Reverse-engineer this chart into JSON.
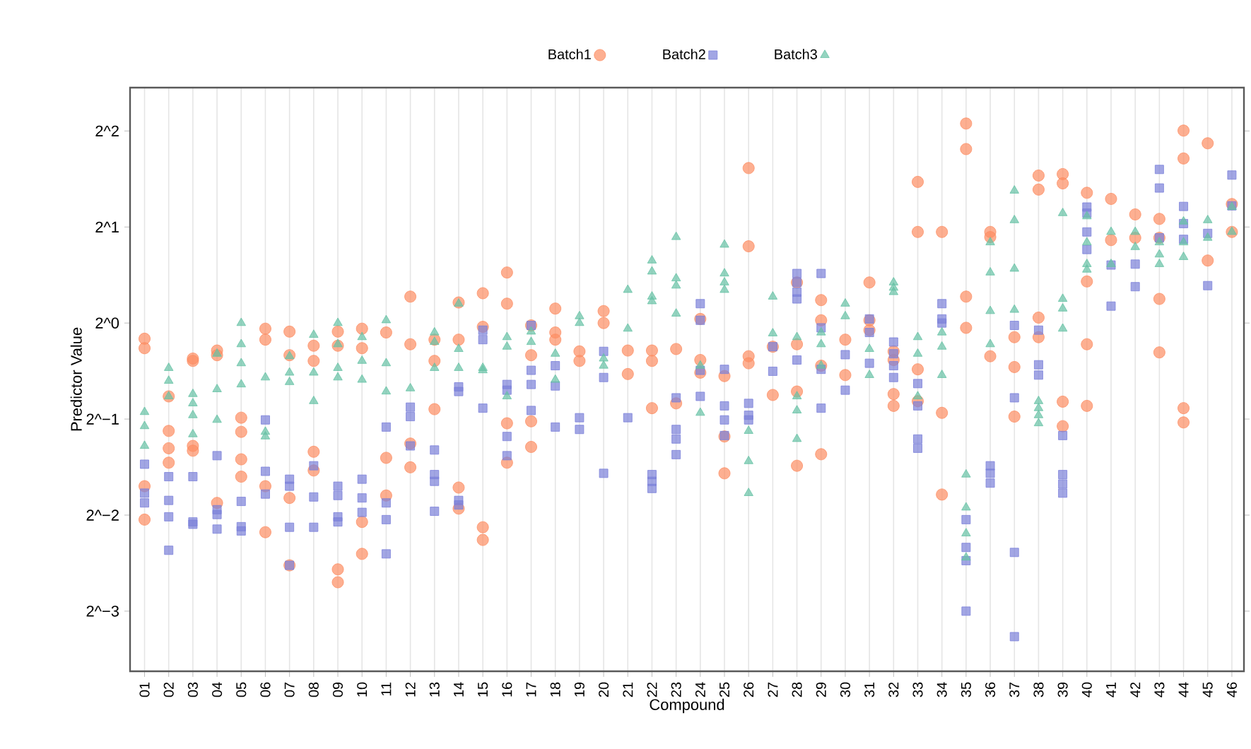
{
  "chart_data": {
    "type": "scatter",
    "xlabel": "Compound",
    "ylabel": "Predictor Value",
    "log": "y",
    "grid": "x",
    "legend": "top",
    "xlim": [
      0.4,
      46.5
    ],
    "xticks": [
      {
        "value": 1,
        "label": "01"
      },
      {
        "value": 2,
        "label": "02"
      },
      {
        "value": 3,
        "label": "03"
      },
      {
        "value": 4,
        "label": "04"
      },
      {
        "value": 5,
        "label": "05"
      },
      {
        "value": 6,
        "label": "06"
      },
      {
        "value": 7,
        "label": "07"
      },
      {
        "value": 8,
        "label": "08"
      },
      {
        "value": 9,
        "label": "09"
      },
      {
        "value": 10,
        "label": "10"
      },
      {
        "value": 11,
        "label": "11"
      },
      {
        "value": 12,
        "label": "12"
      },
      {
        "value": 13,
        "label": "13"
      },
      {
        "value": 14,
        "label": "14"
      },
      {
        "value": 15,
        "label": "15"
      },
      {
        "value": 16,
        "label": "16"
      },
      {
        "value": 17,
        "label": "17"
      },
      {
        "value": 18,
        "label": "18"
      },
      {
        "value": 19,
        "label": "19"
      },
      {
        "value": 20,
        "label": "20"
      },
      {
        "value": 21,
        "label": "21"
      },
      {
        "value": 22,
        "label": "22"
      },
      {
        "value": 23,
        "label": "23"
      },
      {
        "value": 24,
        "label": "24"
      },
      {
        "value": 25,
        "label": "25"
      },
      {
        "value": 26,
        "label": "26"
      },
      {
        "value": 27,
        "label": "27"
      },
      {
        "value": 28,
        "label": "28"
      },
      {
        "value": 29,
        "label": "29"
      },
      {
        "value": 30,
        "label": "30"
      },
      {
        "value": 31,
        "label": "31"
      },
      {
        "value": 32,
        "label": "32"
      },
      {
        "value": 33,
        "label": "33"
      },
      {
        "value": 34,
        "label": "34"
      },
      {
        "value": 35,
        "label": "35"
      },
      {
        "value": 36,
        "label": "36"
      },
      {
        "value": 37,
        "label": "37"
      },
      {
        "value": 38,
        "label": "38"
      },
      {
        "value": 39,
        "label": "39"
      },
      {
        "value": 40,
        "label": "40"
      },
      {
        "value": 41,
        "label": "41"
      },
      {
        "value": 42,
        "label": "42"
      },
      {
        "value": 43,
        "label": "43"
      },
      {
        "value": 44,
        "label": "44"
      },
      {
        "value": 45,
        "label": "45"
      },
      {
        "value": 46,
        "label": "46"
      }
    ],
    "ylim": [
      0.081,
      5.47
    ],
    "yticks": [
      {
        "value": 0.125,
        "label": "2^−3"
      },
      {
        "value": 0.25,
        "label": "2^−2"
      },
      {
        "value": 0.5,
        "label": "2^−1"
      },
      {
        "value": 1,
        "label": "2^0"
      },
      {
        "value": 2,
        "label": "2^1"
      },
      {
        "value": 4,
        "label": "2^2"
      }
    ],
    "series": [
      {
        "name": "Batch1",
        "color": "#fc8d62",
        "marker": "circle",
        "x": [
          1,
          1,
          1,
          1,
          2,
          2,
          2,
          2,
          3,
          3,
          3,
          3,
          4,
          4,
          4,
          5,
          5,
          5,
          5,
          6,
          6,
          6,
          6,
          7,
          7,
          7,
          7,
          8,
          8,
          8,
          8,
          9,
          9,
          9,
          9,
          10,
          10,
          10,
          10,
          11,
          11,
          11,
          12,
          12,
          12,
          12,
          13,
          13,
          13,
          14,
          14,
          14,
          14,
          15,
          15,
          15,
          15,
          16,
          16,
          16,
          16,
          17,
          17,
          17,
          17,
          18,
          18,
          18,
          19,
          19,
          20,
          20,
          21,
          21,
          22,
          22,
          22,
          23,
          23,
          24,
          24,
          24,
          25,
          25,
          25,
          26,
          26,
          26,
          26,
          27,
          27,
          28,
          28,
          28,
          28,
          29,
          29,
          29,
          29,
          30,
          30,
          31,
          31,
          31,
          32,
          32,
          32,
          32,
          33,
          33,
          33,
          33,
          34,
          34,
          34,
          35,
          35,
          35,
          35,
          36,
          36,
          36,
          37,
          37,
          37,
          38,
          38,
          38,
          38,
          39,
          39,
          39,
          39,
          40,
          40,
          40,
          40,
          41,
          41,
          42,
          42,
          43,
          43,
          43,
          43,
          44,
          44,
          44,
          44,
          45,
          45,
          46,
          46
        ],
        "values": [
          0.893,
          0.834,
          0.308,
          0.242,
          0.589,
          0.459,
          0.405,
          0.365,
          0.774,
          0.761,
          0.412,
          0.398,
          0.82,
          0.793,
          0.273,
          0.505,
          0.456,
          0.374,
          0.33,
          0.96,
          0.887,
          0.308,
          0.221,
          0.94,
          0.793,
          0.283,
          0.174,
          0.849,
          0.761,
          0.395,
          0.345,
          0.94,
          0.849,
          0.169,
          0.154,
          0.96,
          0.834,
          0.238,
          0.189,
          0.934,
          0.378,
          0.288,
          1.21,
          0.858,
          0.419,
          0.353,
          0.887,
          0.761,
          0.537,
          1.16,
          0.887,
          0.305,
          0.262,
          1.24,
          0.973,
          0.229,
          0.209,
          1.44,
          1.15,
          0.485,
          0.365,
          0.983,
          0.793,
          0.492,
          0.409,
          1.11,
          0.934,
          0.887,
          0.815,
          0.761,
          1.09,
          1.0,
          0.82,
          0.692,
          0.82,
          0.761,
          0.541,
          0.829,
          0.56,
          1.03,
          0.766,
          0.699,
          0.682,
          0.441,
          0.338,
          3.06,
          1.74,
          0.787,
          0.748,
          0.843,
          0.595,
          1.34,
          0.858,
          0.61,
          0.357,
          1.18,
          1.02,
          0.735,
          0.388,
          0.887,
          0.687,
          1.34,
          1.02,
          0.95,
          0.815,
          0.766,
          0.599,
          0.55,
          2.77,
          1.93,
          0.716,
          0.569,
          1.93,
          0.523,
          0.29,
          4.22,
          3.51,
          1.21,
          0.966,
          1.93,
          1.86,
          0.787,
          0.903,
          0.728,
          0.509,
          2.9,
          2.62,
          1.04,
          0.903,
          2.93,
          2.74,
          0.567,
          0.475,
          2.56,
          1.35,
          0.858,
          0.55,
          2.45,
          1.82,
          2.19,
          1.85,
          2.12,
          1.85,
          1.19,
          0.809,
          4.01,
          3.28,
          0.541,
          0.488,
          3.66,
          1.57,
          2.36,
          1.93
        ]
      },
      {
        "name": "Batch2",
        "color": "#7b80d9",
        "marker": "square",
        "x": [
          1,
          1,
          1,
          2,
          2,
          2,
          2,
          3,
          3,
          3,
          4,
          4,
          4,
          4,
          5,
          5,
          5,
          6,
          6,
          6,
          7,
          7,
          7,
          7,
          8,
          8,
          8,
          9,
          9,
          9,
          9,
          10,
          10,
          10,
          11,
          11,
          11,
          11,
          12,
          12,
          12,
          13,
          13,
          13,
          13,
          14,
          14,
          14,
          14,
          15,
          15,
          15,
          16,
          16,
          16,
          16,
          17,
          17,
          17,
          17,
          18,
          18,
          18,
          19,
          19,
          20,
          20,
          20,
          21,
          22,
          22,
          22,
          23,
          23,
          23,
          23,
          24,
          24,
          24,
          24,
          25,
          25,
          25,
          25,
          26,
          26,
          26,
          27,
          27,
          28,
          28,
          28,
          28,
          28,
          29,
          29,
          29,
          29,
          30,
          30,
          31,
          31,
          31,
          32,
          32,
          32,
          32,
          33,
          33,
          33,
          33,
          34,
          34,
          34,
          35,
          35,
          35,
          35,
          36,
          36,
          36,
          37,
          37,
          37,
          37,
          38,
          38,
          38,
          39,
          39,
          39,
          39,
          40,
          40,
          40,
          40,
          41,
          41,
          42,
          42,
          43,
          43,
          43,
          44,
          44,
          44,
          45,
          45,
          46,
          46
        ],
        "values": [
          0.361,
          0.293,
          0.273,
          0.33,
          0.278,
          0.247,
          0.194,
          0.33,
          0.238,
          0.234,
          0.384,
          0.26,
          0.251,
          0.226,
          0.276,
          0.23,
          0.223,
          0.497,
          0.343,
          0.291,
          0.324,
          0.308,
          0.229,
          0.174,
          0.357,
          0.285,
          0.229,
          0.308,
          0.288,
          0.247,
          0.238,
          0.324,
          0.283,
          0.255,
          0.472,
          0.273,
          0.242,
          0.189,
          0.545,
          0.509,
          0.412,
          0.4,
          0.335,
          0.319,
          0.257,
          0.631,
          0.61,
          0.278,
          0.269,
          0.95,
          0.887,
          0.541,
          0.642,
          0.616,
          0.441,
          0.384,
          0.983,
          0.711,
          0.642,
          0.532,
          0.735,
          0.635,
          0.472,
          0.505,
          0.464,
          0.815,
          0.675,
          0.338,
          0.505,
          0.335,
          0.319,
          0.303,
          0.583,
          0.464,
          0.433,
          0.387,
          1.15,
          1.02,
          0.711,
          0.589,
          0.716,
          0.55,
          0.497,
          0.444,
          0.56,
          0.514,
          0.497,
          0.843,
          0.706,
          1.43,
          1.34,
          1.25,
          1.19,
          0.766,
          1.43,
          0.966,
          0.716,
          0.541,
          0.796,
          0.616,
          1.03,
          0.934,
          0.748,
          0.872,
          0.801,
          0.735,
          0.675,
          0.646,
          0.55,
          0.433,
          0.405,
          1.15,
          1.03,
          1.0,
          0.242,
          0.198,
          0.18,
          0.125,
          0.357,
          0.338,
          0.315,
          0.983,
          0.583,
          0.191,
          0.104,
          0.95,
          0.74,
          0.687,
          0.444,
          0.335,
          0.313,
          0.293,
          2.31,
          2.21,
          1.93,
          1.7,
          1.52,
          1.13,
          1.53,
          1.3,
          3.03,
          2.65,
          1.85,
          2.32,
          2.05,
          1.83,
          1.91,
          1.31,
          2.91,
          2.33
        ]
      },
      {
        "name": "Batch3",
        "color": "#66c2a5",
        "marker": "triangle",
        "x": [
          1,
          1,
          1,
          2,
          2,
          2,
          3,
          3,
          3,
          3,
          4,
          4,
          4,
          5,
          5,
          5,
          5,
          6,
          6,
          6,
          7,
          7,
          7,
          8,
          8,
          8,
          9,
          9,
          9,
          9,
          10,
          10,
          10,
          11,
          11,
          11,
          12,
          13,
          13,
          13,
          14,
          14,
          14,
          15,
          15,
          16,
          16,
          16,
          17,
          17,
          18,
          18,
          19,
          19,
          20,
          20,
          21,
          21,
          22,
          22,
          22,
          22,
          23,
          23,
          23,
          23,
          24,
          24,
          25,
          25,
          25,
          25,
          26,
          26,
          26,
          27,
          27,
          28,
          28,
          28,
          28,
          29,
          29,
          29,
          30,
          30,
          31,
          31,
          32,
          32,
          32,
          33,
          33,
          33,
          34,
          34,
          34,
          35,
          35,
          35,
          35,
          36,
          36,
          36,
          36,
          37,
          37,
          37,
          37,
          38,
          38,
          38,
          38,
          39,
          39,
          39,
          39,
          40,
          40,
          40,
          40,
          41,
          41,
          42,
          42,
          43,
          43,
          43,
          44,
          44,
          44,
          45,
          45,
          46,
          46
        ],
        "values": [
          0.526,
          0.475,
          0.412,
          0.723,
          0.659,
          0.589,
          0.599,
          0.56,
          0.514,
          0.448,
          0.801,
          0.62,
          0.497,
          1.0,
          0.858,
          0.748,
          0.642,
          0.675,
          0.456,
          0.441,
          0.787,
          0.699,
          0.653,
          0.918,
          0.699,
          0.569,
          1.0,
          0.858,
          0.723,
          0.675,
          0.903,
          0.761,
          0.664,
          1.02,
          0.748,
          0.61,
          0.624,
          0.934,
          0.872,
          0.723,
          1.15,
          0.829,
          0.723,
          0.723,
          0.711,
          0.903,
          0.843,
          0.589,
          0.94,
          0.872,
          0.801,
          0.664,
          1.05,
          1.0,
          0.774,
          0.735,
          1.27,
          0.96,
          1.57,
          1.45,
          1.21,
          1.17,
          1.86,
          1.38,
          1.31,
          1.07,
          0.735,
          0.523,
          1.76,
          1.43,
          1.34,
          1.27,
          0.459,
          0.369,
          0.293,
          1.21,
          0.928,
          0.903,
          0.589,
          0.532,
          0.433,
          0.934,
          0.858,
          0.735,
          1.15,
          1.05,
          0.829,
          0.687,
          1.34,
          1.29,
          1.25,
          0.903,
          0.801,
          0.589,
          0.934,
          0.843,
          0.687,
          0.335,
          0.264,
          0.219,
          0.184,
          1.79,
          1.44,
          1.09,
          0.858,
          2.6,
          2.1,
          1.48,
          1.1,
          0.569,
          0.541,
          0.514,
          0.485,
          2.21,
          1.19,
          1.11,
          0.96,
          2.16,
          1.79,
          1.53,
          1.47,
          1.93,
          1.53,
          1.93,
          1.73,
          1.79,
          1.64,
          1.53,
          2.08,
          1.79,
          1.61,
          2.1,
          1.85,
          2.31,
          1.93
        ]
      }
    ]
  }
}
